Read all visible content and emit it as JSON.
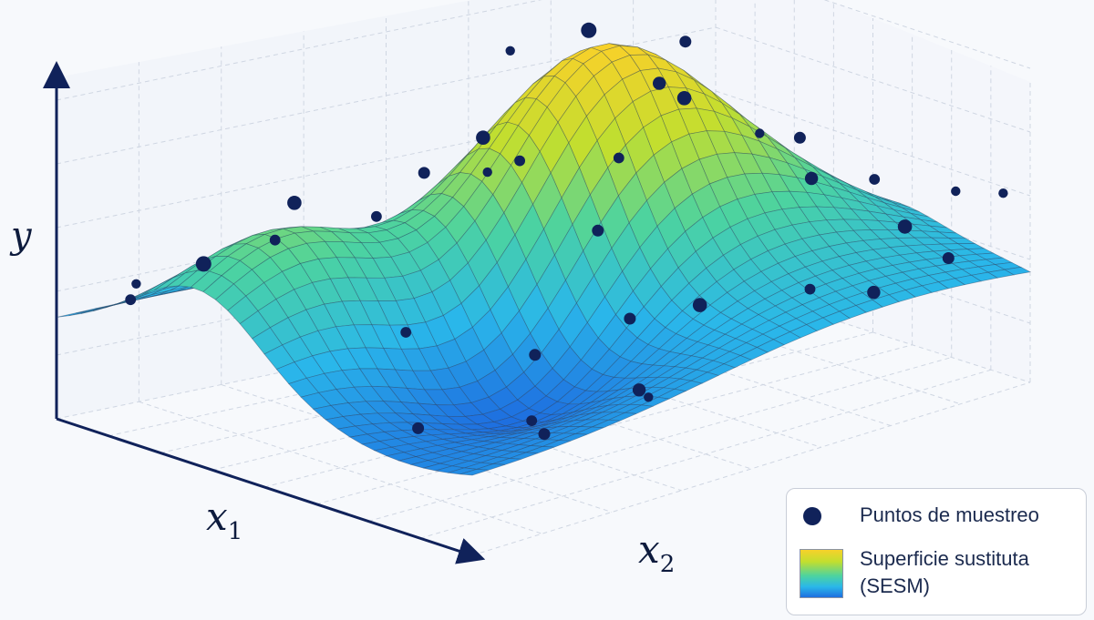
{
  "chart_data": {
    "type": "surface3d",
    "title": "",
    "axes": {
      "x1": {
        "label": "x",
        "subscript": "1"
      },
      "x2": {
        "label": "x",
        "subscript": "2"
      },
      "y": {
        "label": "y"
      }
    },
    "grid": true,
    "legend": {
      "placement": "bottom-right",
      "entries": [
        {
          "name": "Puntos de muestreo",
          "kind": "marker",
          "color": "#10225a"
        },
        {
          "name": "Superficie sustituta",
          "name_line2": "(SESM)",
          "kind": "surface-colormap"
        }
      ]
    },
    "colormap": [
      "#1e6fe0",
      "#2ab7ea",
      "#4cd3a0",
      "#c2de2f",
      "#f7d12a"
    ],
    "surface_peaks": [
      {
        "u": 0.42,
        "v": 0.58,
        "amp": 3.1,
        "sigma": 0.17
      },
      {
        "u": 0.35,
        "v": 0.14,
        "amp": 1.1,
        "sigma": 0.13
      },
      {
        "u": 0.62,
        "v": 0.35,
        "amp": -1.0,
        "sigma": 0.15
      },
      {
        "u": 0.55,
        "v": 0.82,
        "amp": 0.7,
        "sigma": 0.16
      },
      {
        "u": 0.15,
        "v": 0.8,
        "amp": 0.5,
        "sigma": 0.14
      }
    ],
    "sample_points": [
      {
        "u": 0.42,
        "v": 0.58,
        "dz": 0.25,
        "s": 1.3
      },
      {
        "u": 0.34,
        "v": 0.5,
        "dz": 0.7,
        "s": 0.8
      },
      {
        "u": 0.3,
        "v": 0.48,
        "dz": 0.0,
        "s": 1.2
      },
      {
        "u": 0.36,
        "v": 0.35,
        "dz": 0.5,
        "s": 1.0
      },
      {
        "u": 0.3,
        "v": 0.18,
        "dz": 0.3,
        "s": 1.2
      },
      {
        "u": 0.33,
        "v": 0.13,
        "dz": -0.1,
        "s": 0.9
      },
      {
        "u": 0.2,
        "v": 0.1,
        "dz": 0.0,
        "s": 1.3
      },
      {
        "u": 0.1,
        "v": 0.05,
        "dz": 0.0,
        "s": 0.9
      },
      {
        "u": 0.05,
        "v": 0.09,
        "dz": 0.2,
        "s": 0.8
      },
      {
        "u": 0.62,
        "v": 0.37,
        "dz": 0.1,
        "s": 1.0
      },
      {
        "u": 0.72,
        "v": 0.3,
        "dz": 0.0,
        "s": 0.9
      },
      {
        "u": 0.85,
        "v": 0.4,
        "dz": -0.1,
        "s": 1.1
      },
      {
        "u": 0.78,
        "v": 0.55,
        "dz": 0.0,
        "s": 1.2
      },
      {
        "u": 0.55,
        "v": 0.62,
        "dz": 0.3,
        "s": 1.1
      },
      {
        "u": 0.45,
        "v": 0.72,
        "dz": 0.4,
        "s": 1.0
      },
      {
        "u": 0.3,
        "v": 0.8,
        "dz": 0.6,
        "s": 1.2
      },
      {
        "u": 0.5,
        "v": 0.88,
        "dz": 0.3,
        "s": 1.0
      },
      {
        "u": 0.6,
        "v": 0.95,
        "dz": 0.2,
        "s": 0.9
      },
      {
        "u": 0.3,
        "v": 0.92,
        "dz": 0.7,
        "s": 0.8
      },
      {
        "u": 0.2,
        "v": 0.75,
        "dz": 0.0,
        "s": 0.9
      },
      {
        "u": 0.68,
        "v": 0.8,
        "dz": 0.2,
        "s": 1.1
      },
      {
        "u": 0.75,
        "v": 0.92,
        "dz": 0.0,
        "s": 1.2
      },
      {
        "u": 0.88,
        "v": 0.68,
        "dz": 0.0,
        "s": 0.9
      },
      {
        "u": 0.92,
        "v": 0.9,
        "dz": 0.1,
        "s": 1.0
      },
      {
        "u": 0.55,
        "v": 0.2,
        "dz": 0.4,
        "s": 0.9
      },
      {
        "u": 0.7,
        "v": 0.12,
        "dz": 0.0,
        "s": 1.0
      },
      {
        "u": 0.9,
        "v": 0.2,
        "dz": 0.0,
        "s": 1.0
      },
      {
        "u": 0.95,
        "v": 0.35,
        "dz": 0.0,
        "s": 0.8
      },
      {
        "u": 0.15,
        "v": 0.4,
        "dz": 0.3,
        "s": 0.9
      },
      {
        "u": 0.1,
        "v": 0.6,
        "dz": 0.4,
        "s": 0.8
      },
      {
        "u": 0.45,
        "v": 0.45,
        "dz": 0.0,
        "s": 0.9
      },
      {
        "u": 0.58,
        "v": 0.5,
        "dz": -0.2,
        "s": 1.0
      },
      {
        "u": 0.38,
        "v": 0.62,
        "dz": 1.0,
        "s": 0.9
      },
      {
        "u": 0.7,
        "v": 0.48,
        "dz": 0.0,
        "s": 1.0
      },
      {
        "u": 0.95,
        "v": 0.75,
        "dz": 0.0,
        "s": 1.1
      },
      {
        "u": 0.8,
        "v": 0.98,
        "dz": 0.6,
        "s": 0.8
      },
      {
        "u": 0.95,
        "v": 0.98,
        "dz": 0.9,
        "s": 0.8
      }
    ]
  }
}
